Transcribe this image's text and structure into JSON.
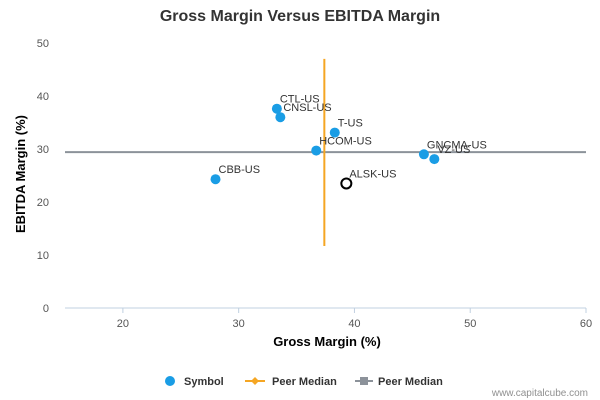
{
  "chart_data": {
    "type": "scatter",
    "title": "Gross Margin Versus EBITDA Margin",
    "xlabel": "Gross Margin (%)",
    "ylabel": "EBITDA Margin (%)",
    "xlim": [
      15,
      60
    ],
    "ylim": [
      0,
      50
    ],
    "x_ticks": [
      20,
      30,
      40,
      50,
      60
    ],
    "y_ticks": [
      0,
      10,
      20,
      30,
      40,
      50
    ],
    "grid": false,
    "legend_position": "bottom",
    "colors": {
      "symbol": "#1a9de5",
      "vertical_median": "#f5a623",
      "horizontal_median": "#8c929a",
      "highlight_stroke": "#000000",
      "axis": "#c0d0e0"
    },
    "series": [
      {
        "name": "Symbol",
        "points": [
          {
            "label": "CTL-US",
            "x": 33.3,
            "y": 37.6
          },
          {
            "label": "CNSL-US",
            "x": 33.6,
            "y": 36.0
          },
          {
            "label": "T-US",
            "x": 38.3,
            "y": 33.1
          },
          {
            "label": "HCOM-US",
            "x": 36.7,
            "y": 29.7
          },
          {
            "label": "GNCMA-US",
            "x": 46.0,
            "y": 29.0
          },
          {
            "label": "VZ-US",
            "x": 46.9,
            "y": 28.1
          },
          {
            "label": "CBB-US",
            "x": 28.0,
            "y": 24.3
          }
        ]
      }
    ],
    "highlight": {
      "label": "ALSK-US",
      "x": 39.3,
      "y": 23.5
    },
    "peer_median_vertical": {
      "name": "Peer Median",
      "x": 37.4,
      "y_range": [
        11.7,
        47.0
      ]
    },
    "peer_median_horizontal": {
      "name": "Peer Median",
      "y": 29.4,
      "x_range": [
        15,
        60
      ]
    }
  },
  "credit": "www.capitalcube.com"
}
